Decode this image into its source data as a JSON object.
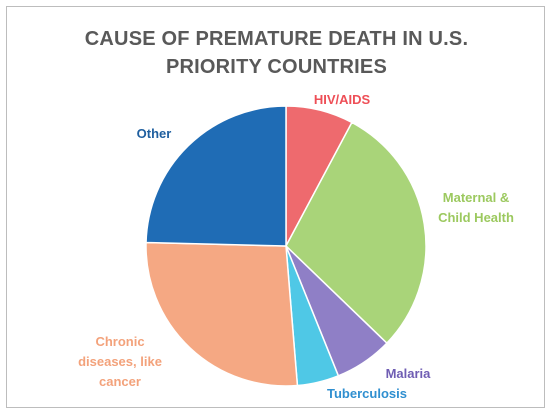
{
  "chart_data": {
    "type": "pie",
    "title_line1": "CAUSE OF PREMATURE DEATH IN U.S.",
    "title_line2": "PRIORITY COUNTRIES",
    "slices": [
      {
        "label": "HIV/AIDS",
        "value": 7.8,
        "color": "#ee6a6e"
      },
      {
        "label": "Maternal & Child Health",
        "value": 29.4,
        "color": "#a9d479"
      },
      {
        "label": "Malaria",
        "value": 6.7,
        "color": "#8f7fc6"
      },
      {
        "label": "Tuberculosis",
        "value": 4.8,
        "color": "#4fc8e6"
      },
      {
        "label": "Chronic diseases, like cancer",
        "value": 26.7,
        "color": "#f5a883"
      },
      {
        "label": "Other",
        "value": 24.6,
        "color": "#1f6cb5"
      }
    ],
    "legend": "none"
  },
  "labels": [
    {
      "lines": [
        "HIV/AIDS"
      ],
      "color": "#ee4f57"
    },
    {
      "lines": [
        "Maternal &",
        "Child Health"
      ],
      "color": "#9cc95f"
    },
    {
      "lines": [
        "Malaria"
      ],
      "color": "#6f5db3"
    },
    {
      "lines": [
        "Tuberculosis"
      ],
      "color": "#2f8fd0"
    },
    {
      "lines": [
        "Chronic",
        "diseases, like",
        "cancer"
      ],
      "color": "#f3a27b"
    },
    {
      "lines": [
        "Other"
      ],
      "color": "#1f5f9f"
    }
  ]
}
